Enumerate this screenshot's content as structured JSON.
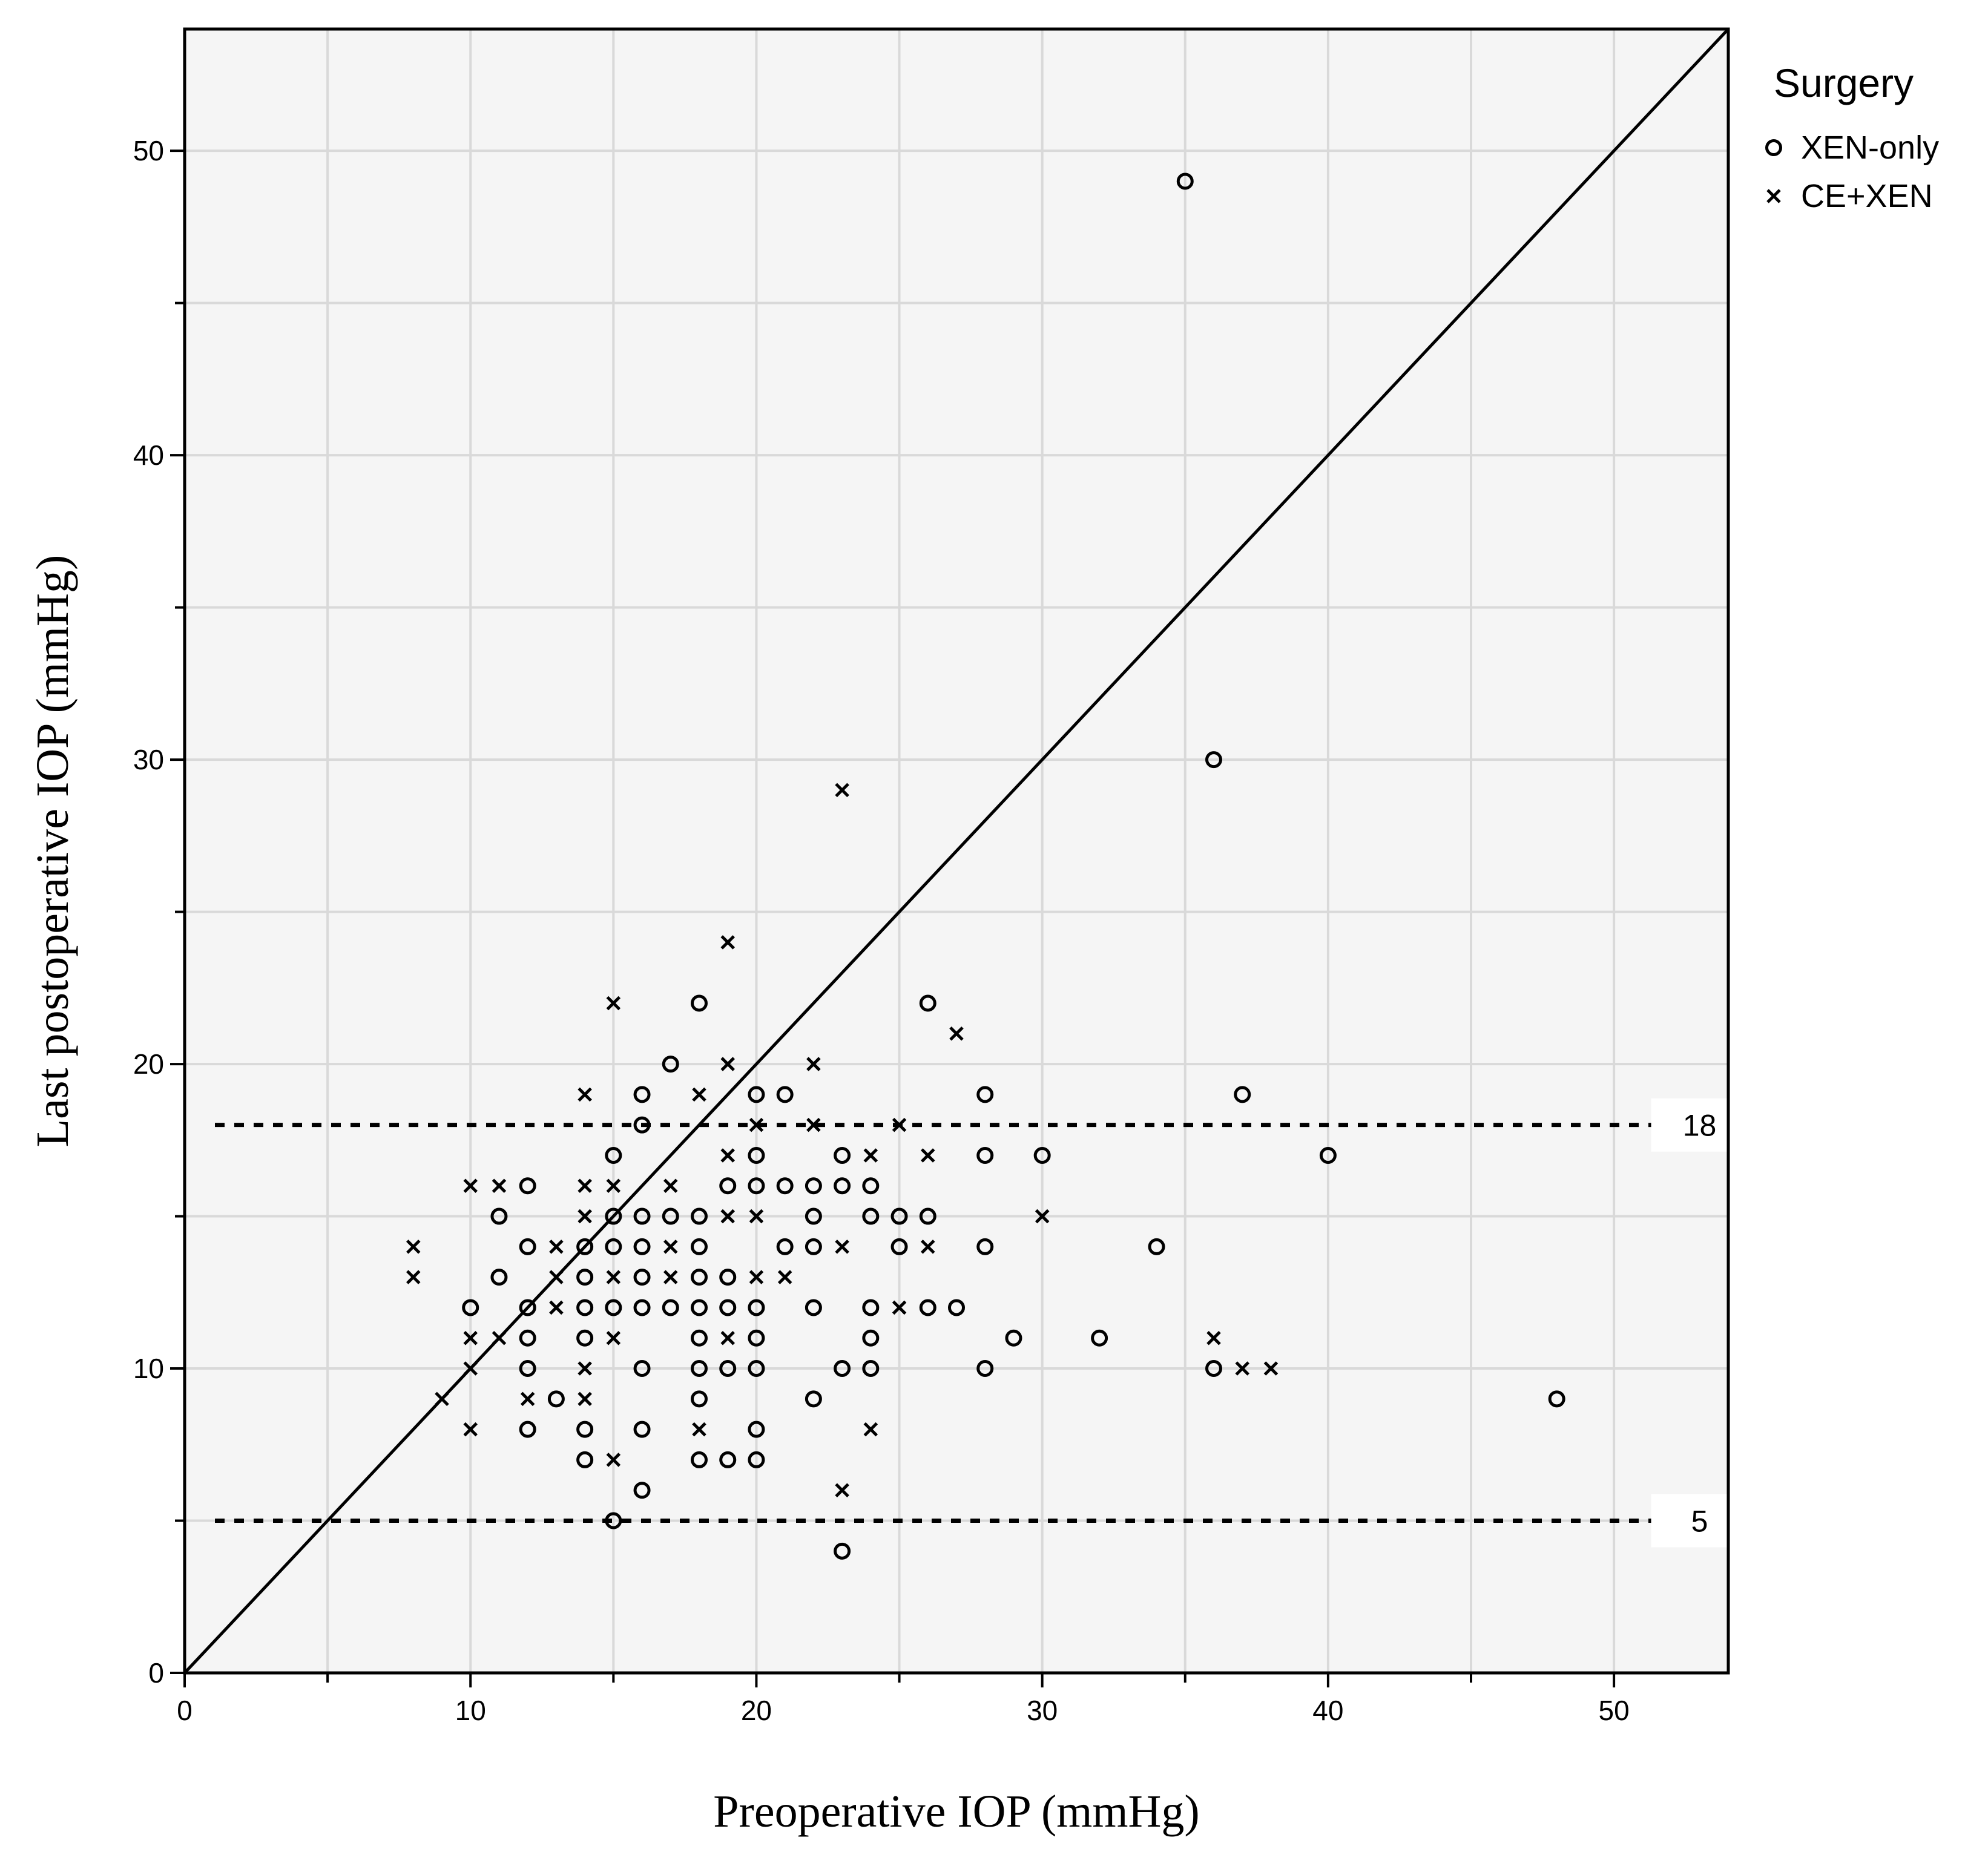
{
  "chart_data": {
    "type": "scatter",
    "title": "",
    "xlabel": "Preoperative IOP (mmHg)",
    "ylabel": "Last postoperative IOP (mmHg)",
    "xlim": [
      0,
      54
    ],
    "ylim": [
      0,
      54
    ],
    "x_ticks": [
      0,
      10,
      20,
      30,
      40,
      50
    ],
    "y_ticks": [
      0,
      10,
      20,
      30,
      40,
      50
    ],
    "grid": true,
    "legend": {
      "title": "Surgery",
      "placement": "right"
    },
    "reference_lines": [
      {
        "type": "diagonal",
        "label": ""
      },
      {
        "type": "horizontal",
        "y": 18,
        "label": "18",
        "style": "dotted"
      },
      {
        "type": "horizontal",
        "y": 5,
        "label": "5",
        "style": "dotted"
      }
    ],
    "series": [
      {
        "name": "XEN-only",
        "marker": "circle",
        "points": [
          [
            35,
            49
          ],
          [
            36,
            30
          ],
          [
            26,
            22
          ],
          [
            18,
            22
          ],
          [
            17,
            20
          ],
          [
            16,
            19
          ],
          [
            20,
            19
          ],
          [
            21,
            19
          ],
          [
            28,
            19
          ],
          [
            37,
            19
          ],
          [
            16,
            18
          ],
          [
            15,
            17
          ],
          [
            20,
            17
          ],
          [
            23,
            17
          ],
          [
            28,
            17
          ],
          [
            30,
            17
          ],
          [
            40,
            17
          ],
          [
            12,
            16
          ],
          [
            19,
            16
          ],
          [
            20,
            16
          ],
          [
            21,
            16
          ],
          [
            22,
            16
          ],
          [
            23,
            16
          ],
          [
            24,
            16
          ],
          [
            11,
            15
          ],
          [
            15,
            15
          ],
          [
            16,
            15
          ],
          [
            17,
            15
          ],
          [
            18,
            15
          ],
          [
            22,
            15
          ],
          [
            24,
            15
          ],
          [
            25,
            15
          ],
          [
            26,
            15
          ],
          [
            12,
            14
          ],
          [
            14,
            14
          ],
          [
            15,
            14
          ],
          [
            16,
            14
          ],
          [
            18,
            14
          ],
          [
            21,
            14
          ],
          [
            22,
            14
          ],
          [
            25,
            14
          ],
          [
            28,
            14
          ],
          [
            34,
            14
          ],
          [
            11,
            13
          ],
          [
            14,
            13
          ],
          [
            16,
            13
          ],
          [
            18,
            13
          ],
          [
            19,
            13
          ],
          [
            10,
            12
          ],
          [
            12,
            12
          ],
          [
            14,
            12
          ],
          [
            15,
            12
          ],
          [
            16,
            12
          ],
          [
            17,
            12
          ],
          [
            18,
            12
          ],
          [
            19,
            12
          ],
          [
            20,
            12
          ],
          [
            22,
            12
          ],
          [
            24,
            12
          ],
          [
            26,
            12
          ],
          [
            27,
            12
          ],
          [
            12,
            11
          ],
          [
            14,
            11
          ],
          [
            18,
            11
          ],
          [
            20,
            11
          ],
          [
            24,
            11
          ],
          [
            29,
            11
          ],
          [
            32,
            11
          ],
          [
            12,
            10
          ],
          [
            16,
            10
          ],
          [
            18,
            10
          ],
          [
            19,
            10
          ],
          [
            20,
            10
          ],
          [
            23,
            10
          ],
          [
            24,
            10
          ],
          [
            28,
            10
          ],
          [
            36,
            10
          ],
          [
            13,
            9
          ],
          [
            18,
            9
          ],
          [
            22,
            9
          ],
          [
            48,
            9
          ],
          [
            12,
            8
          ],
          [
            14,
            8
          ],
          [
            16,
            8
          ],
          [
            20,
            8
          ],
          [
            14,
            7
          ],
          [
            18,
            7
          ],
          [
            19,
            7
          ],
          [
            20,
            7
          ],
          [
            16,
            6
          ],
          [
            15,
            5
          ],
          [
            23,
            4
          ]
        ]
      },
      {
        "name": "CE+XEN",
        "marker": "x",
        "points": [
          [
            23,
            29
          ],
          [
            19,
            24
          ],
          [
            15,
            22
          ],
          [
            27,
            21
          ],
          [
            19,
            20
          ],
          [
            22,
            20
          ],
          [
            14,
            19
          ],
          [
            18,
            19
          ],
          [
            20,
            18
          ],
          [
            22,
            18
          ],
          [
            25,
            18
          ],
          [
            19,
            17
          ],
          [
            24,
            17
          ],
          [
            26,
            17
          ],
          [
            10,
            16
          ],
          [
            11,
            16
          ],
          [
            14,
            16
          ],
          [
            15,
            16
          ],
          [
            17,
            16
          ],
          [
            14,
            15
          ],
          [
            19,
            15
          ],
          [
            20,
            15
          ],
          [
            30,
            15
          ],
          [
            8,
            14
          ],
          [
            13,
            14
          ],
          [
            17,
            14
          ],
          [
            23,
            14
          ],
          [
            26,
            14
          ],
          [
            8,
            13
          ],
          [
            13,
            13
          ],
          [
            15,
            13
          ],
          [
            17,
            13
          ],
          [
            20,
            13
          ],
          [
            21,
            13
          ],
          [
            13,
            12
          ],
          [
            25,
            12
          ],
          [
            10,
            11
          ],
          [
            11,
            11
          ],
          [
            15,
            11
          ],
          [
            19,
            11
          ],
          [
            36,
            11
          ],
          [
            10,
            10
          ],
          [
            14,
            10
          ],
          [
            37,
            10
          ],
          [
            38,
            10
          ],
          [
            9,
            9
          ],
          [
            12,
            9
          ],
          [
            14,
            9
          ],
          [
            10,
            8
          ],
          [
            18,
            8
          ],
          [
            24,
            8
          ],
          [
            15,
            7
          ],
          [
            23,
            6
          ]
        ]
      }
    ]
  }
}
